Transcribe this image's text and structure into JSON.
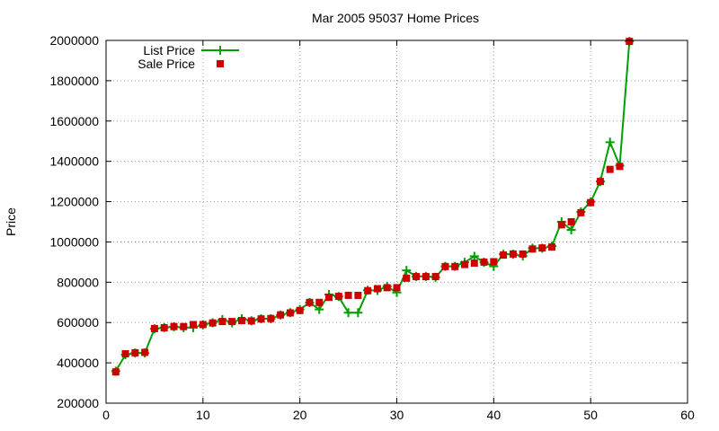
{
  "chart_data": {
    "type": "line",
    "title": "Mar 2005 95037 Home Prices",
    "xlabel": "",
    "ylabel": "Price",
    "xlim": [
      0,
      60
    ],
    "ylim": [
      200000,
      2000000
    ],
    "xticks": [
      "0",
      "10",
      "20",
      "30",
      "40",
      "50",
      "60"
    ],
    "yticks": [
      "200000",
      "400000",
      "600000",
      "800000",
      "1000000",
      "1200000",
      "1400000",
      "1600000",
      "1800000",
      "2000000"
    ],
    "grid": true,
    "legend_position": "top-left",
    "x": [
      1,
      2,
      3,
      4,
      5,
      6,
      7,
      8,
      9,
      10,
      11,
      12,
      13,
      14,
      15,
      16,
      17,
      18,
      19,
      20,
      21,
      22,
      23,
      24,
      25,
      26,
      27,
      28,
      29,
      30,
      31,
      32,
      33,
      34,
      35,
      36,
      37,
      38,
      39,
      40,
      41,
      42,
      43,
      44,
      45,
      46,
      47,
      48,
      49,
      50,
      51,
      52,
      53,
      54
    ],
    "series": [
      {
        "name": "List Price",
        "color": "#00a000",
        "marker": "plus",
        "values": [
          359000,
          440000,
          449000,
          449000,
          569000,
          575000,
          579000,
          575000,
          575000,
          589000,
          599000,
          615000,
          599000,
          619000,
          609000,
          619000,
          619000,
          637000,
          649000,
          665000,
          699000,
          665000,
          739000,
          729000,
          649000,
          649000,
          760000,
          759000,
          779000,
          749000,
          859000,
          829000,
          829000,
          825000,
          879000,
          879000,
          899000,
          929000,
          899000,
          879000,
          939000,
          939000,
          930000,
          969000,
          969000,
          979000,
          1100000,
          1060000,
          1149000,
          1199000,
          1300000,
          1495000,
          1379000,
          1995000
        ]
      },
      {
        "name": "Sale Price",
        "color": "#cc0000",
        "marker": "square",
        "values": [
          355000,
          445000,
          450000,
          452000,
          570000,
          574000,
          580000,
          580000,
          590000,
          590000,
          598000,
          605000,
          605000,
          610000,
          608000,
          618000,
          620000,
          638000,
          648000,
          660000,
          700000,
          700000,
          725000,
          730000,
          735000,
          735000,
          758000,
          768000,
          773000,
          773000,
          820000,
          828000,
          828000,
          828000,
          878000,
          878000,
          888000,
          895000,
          900000,
          902000,
          935000,
          940000,
          940000,
          965000,
          970000,
          975000,
          1085000,
          1100000,
          1145000,
          1195000,
          1300000,
          1360000,
          1375000,
          1995000
        ]
      }
    ]
  }
}
